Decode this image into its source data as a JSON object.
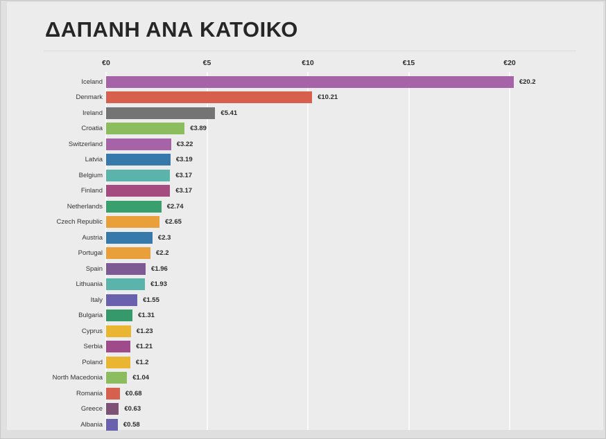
{
  "page": {
    "title": "ΔΑΠΑΝΗ ΑΝΑ ΚΑΤΟΙΚΟ"
  },
  "chart_data": {
    "type": "bar",
    "orientation": "horizontal",
    "title": "ΔΑΠΑΝΗ ΑΝΑ ΚΑΤΟΙΚΟ",
    "xlabel": "",
    "ylabel": "",
    "axis_range": [
      0,
      20
    ],
    "x_ticks": [
      "€0",
      "€5",
      "€10",
      "€15",
      "€20"
    ],
    "x_tick_values": [
      0,
      5,
      10,
      15,
      20
    ],
    "grid": true,
    "legend": "none",
    "categories": [
      "Iceland",
      "Denmark",
      "Ireland",
      "Croatia",
      "Switzerland",
      "Latvia",
      "Belgium",
      "Finland",
      "Netherlands",
      "Czech Republic",
      "Austria",
      "Portugal",
      "Spain",
      "Lithuania",
      "Italy",
      "Bulgaria",
      "Cyprus",
      "Serbia",
      "Poland",
      "North Macedonia",
      "Romania",
      "Greece",
      "Albania"
    ],
    "values": [
      20.2,
      10.21,
      5.41,
      3.89,
      3.22,
      3.19,
      3.17,
      3.17,
      2.74,
      2.65,
      2.3,
      2.2,
      1.96,
      1.93,
      1.55,
      1.31,
      1.23,
      1.21,
      1.2,
      1.04,
      0.68,
      0.63,
      0.58
    ],
    "value_labels": [
      "€20.2",
      "€10.21",
      "€5.41",
      "€3.89",
      "€3.22",
      "€3.19",
      "€3.17",
      "€3.17",
      "€2.74",
      "€2.65",
      "€2.3",
      "€2.2",
      "€1.96",
      "€1.93",
      "€1.55",
      "€1.31",
      "€1.23",
      "€1.21",
      "€1.2",
      "€1.04",
      "€0.68",
      "€0.63",
      "€0.58"
    ],
    "bar_colors": [
      "#a763a7",
      "#d6604d",
      "#747474",
      "#8bbd5e",
      "#a763a7",
      "#3879ab",
      "#5bb4ac",
      "#a64b80",
      "#39a06d",
      "#e9a03a",
      "#3879ab",
      "#e9a03a",
      "#7d5a94",
      "#5bb4ac",
      "#6a61ae",
      "#35996b",
      "#eab531",
      "#9f4b8b",
      "#eab531",
      "#8bbd5e",
      "#d6604d",
      "#7d5276",
      "#6a61ae"
    ],
    "background_color": "#ececec",
    "gridline_color": "#fafafa"
  }
}
